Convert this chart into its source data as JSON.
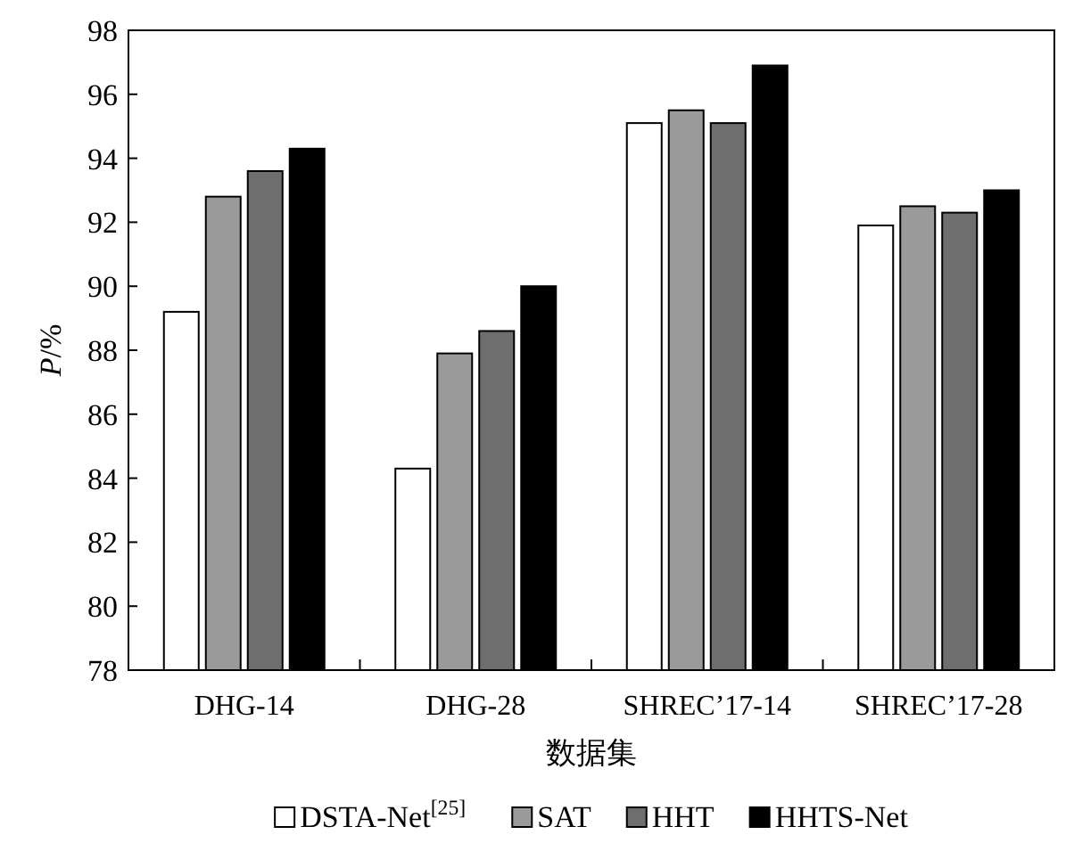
{
  "chart_data": {
    "type": "bar",
    "xlabel": "数据集",
    "ylabel": "*P*/%",
    "categories": [
      "DHG-14",
      "DHG-28",
      "SHREC’17-14",
      "SHREC’17-28"
    ],
    "series": [
      {
        "name": "DSTA-Net$^{[25]}$",
        "color": "#ffffff",
        "values": [
          89.2,
          84.3,
          95.1,
          91.9
        ]
      },
      {
        "name": "SAT",
        "color": "#9a9a9a",
        "values": [
          92.8,
          87.9,
          95.5,
          92.5
        ]
      },
      {
        "name": "HHT",
        "color": "#6e6e6e",
        "values": [
          93.6,
          88.6,
          95.1,
          92.3
        ]
      },
      {
        "name": "HHTS-Net",
        "color": "#000000",
        "values": [
          94.3,
          90.0,
          96.9,
          93.0
        ]
      }
    ],
    "ylim": [
      78,
      98
    ],
    "yticks": [
      78,
      80,
      82,
      84,
      86,
      88,
      90,
      92,
      94,
      96,
      98
    ],
    "grid": false,
    "legend": "bottom"
  }
}
